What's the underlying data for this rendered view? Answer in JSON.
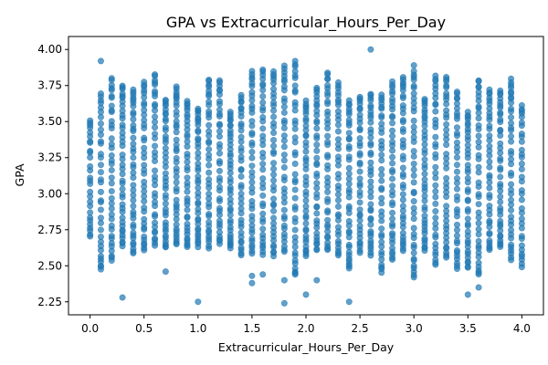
{
  "chart_data": {
    "type": "scatter",
    "title": "GPA vs Extracurricular_Hours_Per_Day",
    "xlabel": "Extracurricular_Hours_Per_Day",
    "ylabel": "GPA",
    "xlim": [
      -0.2,
      4.2
    ],
    "ylim": [
      2.16,
      4.09
    ],
    "xticks": [
      0.0,
      0.5,
      1.0,
      1.5,
      2.0,
      2.5,
      3.0,
      3.5,
      4.0
    ],
    "xtick_labels": [
      "0.0",
      "0.5",
      "1.0",
      "1.5",
      "2.0",
      "2.5",
      "3.0",
      "3.5",
      "4.0"
    ],
    "yticks": [
      2.25,
      2.5,
      2.75,
      3.0,
      3.25,
      3.5,
      3.75,
      4.0
    ],
    "ytick_labels": [
      "2.25",
      "2.50",
      "2.75",
      "3.00",
      "3.25",
      "3.50",
      "3.75",
      "4.00"
    ],
    "grid": false,
    "legend": "none",
    "marker_color": "#1f77b4",
    "marker_alpha": 0.7,
    "x_values": [
      0.0,
      0.1,
      0.2,
      0.3,
      0.4,
      0.5,
      0.6,
      0.7,
      0.8,
      0.9,
      1.0,
      1.1,
      1.2,
      1.3,
      1.4,
      1.5,
      1.6,
      1.7,
      1.8,
      1.9,
      2.0,
      2.1,
      2.2,
      2.3,
      2.4,
      2.5,
      2.6,
      2.7,
      2.8,
      2.9,
      3.0,
      3.1,
      3.2,
      3.3,
      3.4,
      3.5,
      3.6,
      3.7,
      3.8,
      3.9,
      4.0
    ],
    "column_ranges": [
      [
        2.7,
        3.52
      ],
      [
        2.47,
        3.7
      ],
      [
        2.53,
        3.81
      ],
      [
        2.63,
        3.76
      ],
      [
        2.58,
        3.73
      ],
      [
        2.6,
        3.78
      ],
      [
        2.63,
        3.84
      ],
      [
        2.62,
        3.66
      ],
      [
        2.64,
        3.75
      ],
      [
        2.62,
        3.65
      ],
      [
        2.63,
        3.6
      ],
      [
        2.62,
        3.8
      ],
      [
        2.65,
        3.79
      ],
      [
        2.62,
        3.57
      ],
      [
        2.57,
        3.69
      ],
      [
        2.58,
        3.86
      ],
      [
        2.57,
        3.87
      ],
      [
        2.56,
        3.85
      ],
      [
        2.59,
        3.9
      ],
      [
        2.43,
        3.93
      ],
      [
        2.56,
        3.65
      ],
      [
        2.6,
        3.74
      ],
      [
        2.6,
        3.85
      ],
      [
        2.56,
        3.78
      ],
      [
        2.47,
        3.65
      ],
      [
        2.59,
        3.68
      ],
      [
        2.57,
        3.7
      ],
      [
        2.45,
        3.7
      ],
      [
        2.54,
        3.78
      ],
      [
        2.6,
        3.82
      ],
      [
        2.43,
        3.86
      ],
      [
        2.6,
        3.66
      ],
      [
        2.5,
        3.83
      ],
      [
        2.55,
        3.82
      ],
      [
        2.47,
        3.72
      ],
      [
        2.48,
        3.57
      ],
      [
        2.43,
        3.8
      ],
      [
        2.6,
        3.73
      ],
      [
        2.62,
        3.72
      ],
      [
        2.54,
        3.8
      ],
      [
        2.49,
        3.62
      ]
    ],
    "column_counts": [
      28,
      34,
      38,
      40,
      40,
      38,
      38,
      40,
      40,
      38,
      40,
      40,
      38,
      40,
      38,
      40,
      38,
      40,
      38,
      40,
      40,
      38,
      40,
      38,
      40,
      38,
      40,
      38,
      40,
      40,
      40,
      40,
      38,
      40,
      38,
      40,
      40,
      38,
      40,
      40,
      34
    ],
    "outliers": [
      {
        "x": 0.1,
        "y": 3.92
      },
      {
        "x": 0.1,
        "y": 2.5
      },
      {
        "x": 0.3,
        "y": 2.28
      },
      {
        "x": 0.7,
        "y": 2.46
      },
      {
        "x": 1.0,
        "y": 2.25
      },
      {
        "x": 1.5,
        "y": 2.43
      },
      {
        "x": 1.5,
        "y": 2.38
      },
      {
        "x": 1.6,
        "y": 2.44
      },
      {
        "x": 1.8,
        "y": 2.24
      },
      {
        "x": 1.8,
        "y": 2.4
      },
      {
        "x": 1.9,
        "y": 2.45
      },
      {
        "x": 2.0,
        "y": 2.3
      },
      {
        "x": 2.1,
        "y": 2.4
      },
      {
        "x": 2.4,
        "y": 2.25
      },
      {
        "x": 2.6,
        "y": 4.0
      },
      {
        "x": 3.0,
        "y": 3.89
      },
      {
        "x": 3.0,
        "y": 2.42
      },
      {
        "x": 3.5,
        "y": 2.3
      },
      {
        "x": 3.6,
        "y": 2.35
      },
      {
        "x": 3.9,
        "y": 3.67
      }
    ]
  }
}
